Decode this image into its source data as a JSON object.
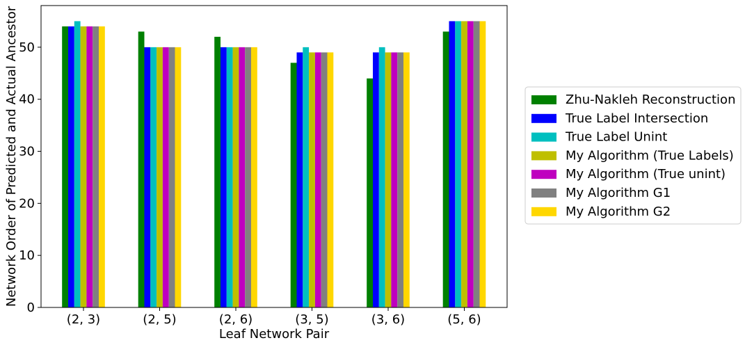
{
  "chart_data": {
    "type": "bar",
    "title": "",
    "xlabel": "Leaf Network Pair",
    "ylabel": "Network Order of Predicted and Actual Ancestor",
    "ylim": [
      0,
      58
    ],
    "yticks": [
      0,
      10,
      20,
      30,
      40,
      50
    ],
    "grid": false,
    "legend_position": "right",
    "categories": [
      "(2, 3)",
      "(2, 5)",
      "(2, 6)",
      "(3, 5)",
      "(3, 6)",
      "(5, 6)"
    ],
    "series": [
      {
        "name": "Zhu-Nakleh Reconstruction",
        "color": "#008000",
        "values": [
          54,
          53,
          52,
          47,
          44,
          53
        ]
      },
      {
        "name": "True Label Intersection",
        "color": "#0000ff",
        "values": [
          54,
          50,
          50,
          49,
          49,
          55
        ]
      },
      {
        "name": "True Label Unint",
        "color": "#00bfbf",
        "values": [
          55,
          50,
          50,
          50,
          50,
          55
        ]
      },
      {
        "name": "My Algorithm (True Labels)",
        "color": "#bfbf00",
        "values": [
          54,
          50,
          50,
          49,
          49,
          55
        ]
      },
      {
        "name": "My Algorithm (True unint)",
        "color": "#bf00bf",
        "values": [
          54,
          50,
          50,
          49,
          49,
          55
        ]
      },
      {
        "name": "My Algorithm G1",
        "color": "#808080",
        "values": [
          54,
          50,
          50,
          49,
          49,
          55
        ]
      },
      {
        "name": "My Algorithm G2",
        "color": "#ffd700",
        "values": [
          54,
          50,
          50,
          49,
          49,
          55
        ]
      }
    ]
  }
}
